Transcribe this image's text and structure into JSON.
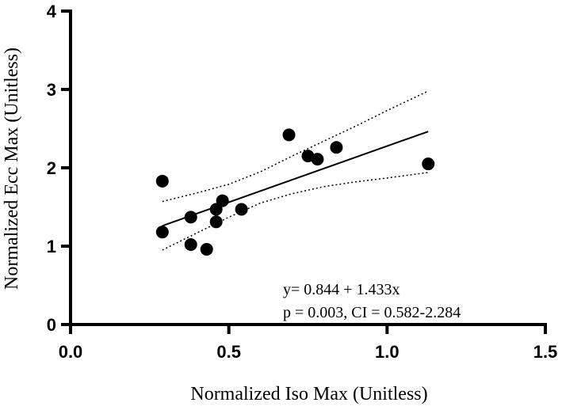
{
  "chart_data": {
    "type": "scatter",
    "title": "",
    "xlabel": "Normalized Iso Max (Unitless)",
    "ylabel": "Normalized Ecc Max (Unitless)",
    "xlim": [
      0.0,
      1.5
    ],
    "ylim": [
      0,
      4
    ],
    "xticks": [
      0.0,
      0.5,
      1.0,
      1.5
    ],
    "xtick_labels": [
      "0.0",
      "0.5",
      "1.0",
      "1.5"
    ],
    "yticks": [
      0,
      1,
      2,
      3,
      4
    ],
    "ytick_labels": [
      "0",
      "1",
      "2",
      "3",
      "4"
    ],
    "grid": false,
    "points": [
      {
        "x": 0.29,
        "y": 1.83
      },
      {
        "x": 0.29,
        "y": 1.18
      },
      {
        "x": 0.38,
        "y": 1.37
      },
      {
        "x": 0.38,
        "y": 1.02
      },
      {
        "x": 0.43,
        "y": 0.96
      },
      {
        "x": 0.46,
        "y": 1.47
      },
      {
        "x": 0.46,
        "y": 1.31
      },
      {
        "x": 0.48,
        "y": 1.58
      },
      {
        "x": 0.54,
        "y": 1.47
      },
      {
        "x": 0.69,
        "y": 2.42
      },
      {
        "x": 0.75,
        "y": 2.15
      },
      {
        "x": 0.78,
        "y": 2.11
      },
      {
        "x": 0.84,
        "y": 2.26
      },
      {
        "x": 1.13,
        "y": 2.05
      }
    ],
    "fit_line": {
      "intercept": 0.844,
      "slope": 1.433,
      "x_range": [
        0.29,
        1.13
      ]
    },
    "ci_upper": [
      {
        "x": 0.29,
        "y": 1.57
      },
      {
        "x": 0.4,
        "y": 1.68
      },
      {
        "x": 0.5,
        "y": 1.79
      },
      {
        "x": 0.6,
        "y": 1.95
      },
      {
        "x": 0.7,
        "y": 2.15
      },
      {
        "x": 0.8,
        "y": 2.34
      },
      {
        "x": 0.9,
        "y": 2.53
      },
      {
        "x": 1.0,
        "y": 2.73
      },
      {
        "x": 1.13,
        "y": 2.98
      }
    ],
    "ci_lower": [
      {
        "x": 0.29,
        "y": 0.95
      },
      {
        "x": 0.4,
        "y": 1.17
      },
      {
        "x": 0.5,
        "y": 1.37
      },
      {
        "x": 0.6,
        "y": 1.55
      },
      {
        "x": 0.7,
        "y": 1.67
      },
      {
        "x": 0.8,
        "y": 1.76
      },
      {
        "x": 0.9,
        "y": 1.82
      },
      {
        "x": 1.0,
        "y": 1.87
      },
      {
        "x": 1.13,
        "y": 1.94
      }
    ],
    "annotations": [
      "y= 0.844 + 1.433x",
      "p = 0.003, CI = 0.582-2.284"
    ]
  }
}
